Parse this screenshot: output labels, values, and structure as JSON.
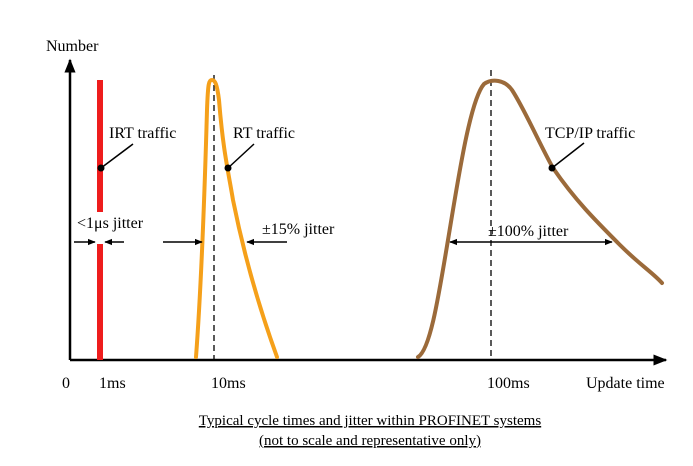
{
  "title": "Typical cycle times and jitter within PROFINET systems",
  "subtitle": "(not to scale and representative only)",
  "y_axis_label": "Number",
  "x_axis_label": "Update time",
  "x_ticks": {
    "origin": "0",
    "t1": "1ms",
    "t2": "10ms",
    "t3": "100ms"
  },
  "series": {
    "irt": {
      "name": "IRT traffic",
      "jitter": "<1μs jitter",
      "color": "#ee1c1c"
    },
    "rt": {
      "name": "RT traffic",
      "jitter": "±15% jitter",
      "color": "#f5a01a"
    },
    "tcp": {
      "name": "TCP/IP traffic",
      "jitter": "±100% jitter",
      "color": "#9b6a3a"
    }
  }
}
